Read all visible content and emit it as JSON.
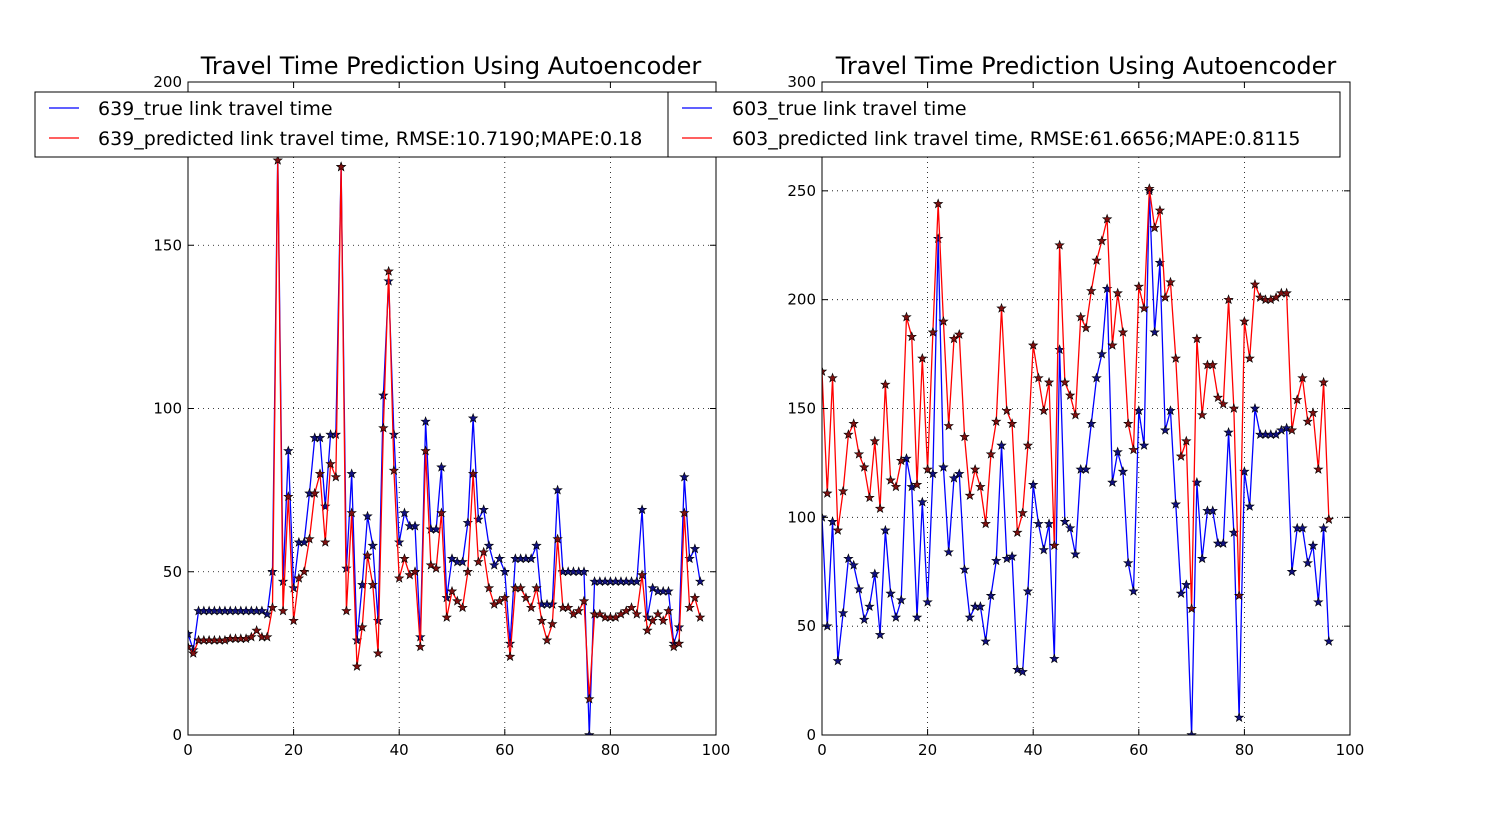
{
  "colors": {
    "true_series": "#0000ff",
    "pred_series": "#ff0000",
    "marker_fill_pred": "#7f1010",
    "marker_fill_true": "#10107f"
  },
  "chart_data": [
    {
      "type": "line",
      "title": "Travel Time Prediction Using Autoencoder",
      "xlabel": "",
      "ylabel": "",
      "xlim": [
        0,
        100
      ],
      "ylim": [
        0,
        200
      ],
      "xticks": [
        0,
        20,
        40,
        60,
        80,
        100
      ],
      "yticks": [
        0,
        50,
        100,
        150,
        200
      ],
      "xtick_labels": [
        "0",
        "20",
        "40",
        "60",
        "80",
        "100"
      ],
      "ytick_labels": [
        "0",
        "50",
        "100",
        "150",
        "200"
      ],
      "grid": true,
      "legend_position": "top",
      "markers": "star",
      "series": [
        {
          "name": "639_true link travel time",
          "color": "#0000ff",
          "values": [
            31,
            26,
            38,
            38,
            38,
            38,
            38,
            38,
            38,
            38,
            38,
            38,
            38,
            38,
            38,
            37,
            50,
            179,
            47,
            87,
            45,
            59,
            59,
            74,
            91,
            91,
            70,
            92,
            92,
            174,
            51,
            80,
            29,
            46,
            67,
            58,
            35,
            104,
            139,
            92,
            59,
            68,
            64,
            64,
            30,
            96,
            63,
            63,
            82,
            42,
            54,
            53,
            53,
            65,
            97,
            66,
            69,
            58,
            52,
            54,
            50,
            28,
            54,
            54,
            54,
            54,
            58,
            40,
            40,
            40,
            75,
            50,
            50,
            50,
            50,
            50,
            0,
            47,
            47,
            47,
            47,
            47,
            47,
            47,
            47,
            47,
            69,
            36,
            45,
            44,
            44,
            44,
            28,
            33,
            79,
            54,
            57,
            47
          ]
        },
        {
          "name": "639_predicted link travel time, RMSE:10.7190;MAPE:0.18",
          "color": "#ff0000",
          "values": [
            27,
            25,
            29,
            29,
            29,
            29,
            29,
            29,
            29.5,
            29.5,
            29.5,
            29.5,
            30,
            32,
            30,
            30,
            39,
            176,
            38,
            73,
            35,
            48,
            50,
            60,
            74,
            80,
            59,
            83,
            79,
            174,
            38,
            68,
            21,
            33,
            55,
            46,
            25,
            94,
            142,
            81,
            48,
            54,
            49,
            50,
            27,
            87,
            52,
            51,
            68,
            36,
            44,
            41,
            39,
            50,
            80,
            53,
            56,
            45,
            40,
            41,
            42,
            24,
            45,
            45,
            42,
            39,
            45,
            35,
            29,
            34,
            60,
            39,
            39,
            37,
            38,
            41,
            11,
            37,
            37,
            36,
            36,
            36,
            37,
            38,
            39,
            37,
            49,
            32,
            35,
            37,
            35,
            38,
            27,
            28,
            68,
            39,
            42,
            36
          ]
        }
      ]
    },
    {
      "type": "line",
      "title": "Travel Time Prediction Using Autoencoder",
      "xlabel": "",
      "ylabel": "",
      "xlim": [
        0,
        100
      ],
      "ylim": [
        0,
        300
      ],
      "xticks": [
        0,
        20,
        40,
        60,
        80,
        100
      ],
      "yticks": [
        0,
        50,
        100,
        150,
        200,
        250,
        300
      ],
      "xtick_labels": [
        "0",
        "20",
        "40",
        "60",
        "80",
        "100"
      ],
      "ytick_labels": [
        "0",
        "50",
        "100",
        "150",
        "200",
        "250",
        "300"
      ],
      "grid": true,
      "legend_position": "top",
      "markers": "star",
      "series": [
        {
          "name": "603_true link travel time",
          "color": "#0000ff",
          "values": [
            100,
            50,
            98,
            34,
            56,
            81,
            78,
            67,
            53,
            59,
            74,
            46,
            94,
            65,
            54,
            62,
            127,
            114,
            54,
            107,
            61,
            120,
            228,
            123,
            84,
            118,
            120,
            76,
            54,
            59,
            59,
            43,
            64,
            80,
            133,
            81,
            82,
            30,
            29,
            66,
            115,
            97,
            85,
            97,
            35,
            177,
            98,
            95,
            83,
            122,
            122,
            143,
            164,
            175,
            205,
            116,
            130,
            121,
            79,
            66,
            149,
            133,
            250,
            185,
            217,
            140,
            149,
            106,
            65,
            69,
            0,
            116,
            81,
            103,
            103,
            88,
            88,
            139,
            93,
            8,
            121,
            105,
            150,
            138,
            138,
            138,
            138,
            140,
            141,
            75,
            95,
            95,
            79,
            87,
            61,
            95,
            43
          ]
        },
        {
          "name": "603_predicted link travel time, RMSE:61.6656;MAPE:0.8115",
          "color": "#ff0000",
          "values": [
            167,
            111,
            164,
            94,
            112,
            138,
            143,
            129,
            123,
            109,
            135,
            104,
            161,
            117,
            114,
            126,
            192,
            183,
            115,
            173,
            122,
            185,
            244,
            190,
            142,
            182,
            184,
            137,
            110,
            122,
            114,
            97,
            129,
            144,
            196,
            149,
            143,
            93,
            102,
            133,
            179,
            164,
            149,
            162,
            87,
            225,
            162,
            156,
            147,
            192,
            187,
            204,
            218,
            227,
            237,
            179,
            203,
            185,
            143,
            131,
            206,
            196,
            251,
            233,
            241,
            201,
            208,
            173,
            128,
            135,
            58,
            182,
            147,
            170,
            170,
            155,
            152,
            200,
            150,
            64,
            190,
            173,
            207,
            201,
            200,
            200,
            201,
            203,
            203,
            140,
            154,
            164,
            144,
            148,
            122,
            162,
            99
          ]
        }
      ]
    }
  ]
}
